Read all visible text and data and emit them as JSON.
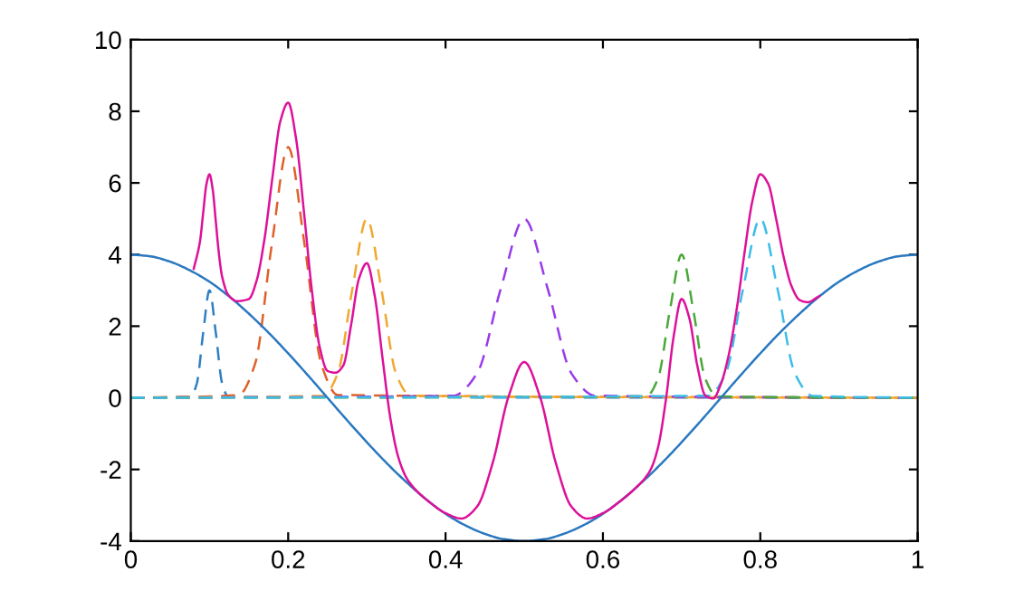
{
  "chart_data": {
    "type": "line",
    "xlim": [
      0,
      1
    ],
    "ylim": [
      -4,
      10
    ],
    "xticks": [
      0,
      0.2,
      0.4,
      0.6,
      0.8,
      1
    ],
    "yticks": [
      -4,
      -2,
      0,
      2,
      4,
      6,
      8,
      10
    ],
    "grid": false,
    "legend": false,
    "series": [
      {
        "color": "#2f7fc4",
        "line_style": "dashed",
        "x": [
          0,
          0.076,
          0.084,
          0.092,
          0.1,
          0.108,
          0.116,
          0.124,
          1
        ],
        "values": [
          0,
          0.03,
          0.41,
          1.82,
          3,
          1.82,
          0.41,
          0.03,
          0
        ]
      },
      {
        "color": "#e0602a",
        "line_style": "dashed",
        "x": [
          0,
          0.137,
          0.158,
          0.179,
          0.2,
          0.221,
          0.242,
          0.263,
          1
        ],
        "values": [
          0,
          0.08,
          0.95,
          4.25,
          7,
          4.25,
          0.95,
          0.08,
          0
        ]
      },
      {
        "color": "#f0a830",
        "line_style": "dashed",
        "x": [
          0,
          0.2445,
          0.263,
          0.2815,
          0.3,
          0.3185,
          0.337,
          0.3555,
          1
        ],
        "values": [
          0,
          0.06,
          0.68,
          3.03,
          5,
          3.03,
          0.68,
          0.06,
          0
        ]
      },
      {
        "color": "#9a3ae8",
        "line_style": "dashed",
        "x": [
          0,
          0.41,
          0.44,
          0.47,
          0.5,
          0.53,
          0.56,
          0.59,
          1
        ],
        "values": [
          0,
          0.06,
          0.68,
          3.03,
          5,
          3.03,
          0.68,
          0.06,
          0
        ]
      },
      {
        "color": "#4aa83a",
        "line_style": "dashed",
        "x": [
          0,
          0.655,
          0.67,
          0.685,
          0.7,
          0.715,
          0.73,
          0.745,
          1
        ],
        "values": [
          0,
          0.04,
          0.54,
          2.43,
          4,
          2.43,
          0.54,
          0.04,
          0
        ]
      },
      {
        "color": "#3cbde8",
        "line_style": "dashed",
        "x": [
          0,
          0.734,
          0.756,
          0.778,
          0.8,
          0.822,
          0.844,
          0.866,
          1
        ],
        "values": [
          0,
          0.06,
          0.68,
          3.03,
          5,
          3.03,
          0.68,
          0.06,
          0
        ]
      },
      {
        "color": "#2a78c0",
        "line_style": "solid",
        "x": [
          0,
          0.025,
          0.05,
          0.075,
          0.1,
          0.125,
          0.15,
          0.175,
          0.2,
          0.225,
          0.25,
          0.275,
          0.3,
          0.325,
          0.35,
          0.375,
          0.4,
          0.425,
          0.45,
          0.475,
          0.5,
          0.525,
          0.55,
          0.575,
          0.6,
          0.625,
          0.65,
          0.675,
          0.7,
          0.725,
          0.75,
          0.775,
          0.8,
          0.825,
          0.85,
          0.875,
          0.9,
          0.925,
          0.95,
          0.975,
          1
        ],
        "values": [
          4,
          3.95,
          3.8,
          3.56,
          3.24,
          2.83,
          2.35,
          1.82,
          1.24,
          0.63,
          0,
          -0.63,
          -1.24,
          -1.82,
          -2.35,
          -2.83,
          -3.24,
          -3.56,
          -3.8,
          -3.95,
          -4,
          -3.95,
          -3.8,
          -3.56,
          -3.24,
          -2.83,
          -2.35,
          -1.82,
          -1.24,
          -0.63,
          0,
          0.63,
          1.24,
          1.82,
          2.35,
          2.83,
          3.24,
          3.56,
          3.8,
          3.95,
          4
        ]
      },
      {
        "color": "#dd1199",
        "line_style": "solid",
        "x": [
          0.08,
          0.088,
          0.092,
          0.096,
          0.1,
          0.104,
          0.108,
          0.112,
          0.116,
          0.124,
          0.135,
          0.15,
          0.16,
          0.17,
          0.18,
          0.19,
          0.2,
          0.21,
          0.22,
          0.23,
          0.24,
          0.25,
          0.26,
          0.27,
          0.28,
          0.29,
          0.3,
          0.31,
          0.32,
          0.33,
          0.34,
          0.35,
          0.36,
          0.38,
          0.4,
          0.42,
          0.44,
          0.46,
          0.48,
          0.5,
          0.52,
          0.54,
          0.56,
          0.58,
          0.6,
          0.62,
          0.64,
          0.66,
          0.67,
          0.68,
          0.69,
          0.7,
          0.71,
          0.72,
          0.73,
          0.74,
          0.75,
          0.76,
          0.77,
          0.78,
          0.79,
          0.8,
          0.81,
          0.82,
          0.83,
          0.84,
          0.85,
          0.86,
          0.875
        ],
        "values": [
          3.6,
          4.38,
          5.17,
          5.95,
          6.24,
          5.83,
          4.93,
          4.02,
          3.39,
          2.87,
          2.7,
          2.76,
          3.28,
          4.45,
          6.15,
          7.72,
          8.24,
          7.24,
          5.2,
          3.02,
          1.42,
          0.75,
          0.7,
          0.9,
          2.04,
          3.33,
          3.76,
          2.85,
          1.09,
          -0.59,
          -1.66,
          -2.22,
          -2.52,
          -2.92,
          -3.22,
          -3.37,
          -3.04,
          -1.81,
          0.03,
          1,
          0.03,
          -1.81,
          -3.04,
          -3.37,
          -3.22,
          -2.92,
          -2.55,
          -2.03,
          -1.39,
          -0.06,
          1.73,
          2.76,
          2.21,
          0.89,
          0.07,
          -0.02,
          0.39,
          1.21,
          2.47,
          4.06,
          5.5,
          6.24,
          5.98,
          5.01,
          3.9,
          3.1,
          2.73,
          2.67,
          2.84
        ]
      }
    ]
  }
}
